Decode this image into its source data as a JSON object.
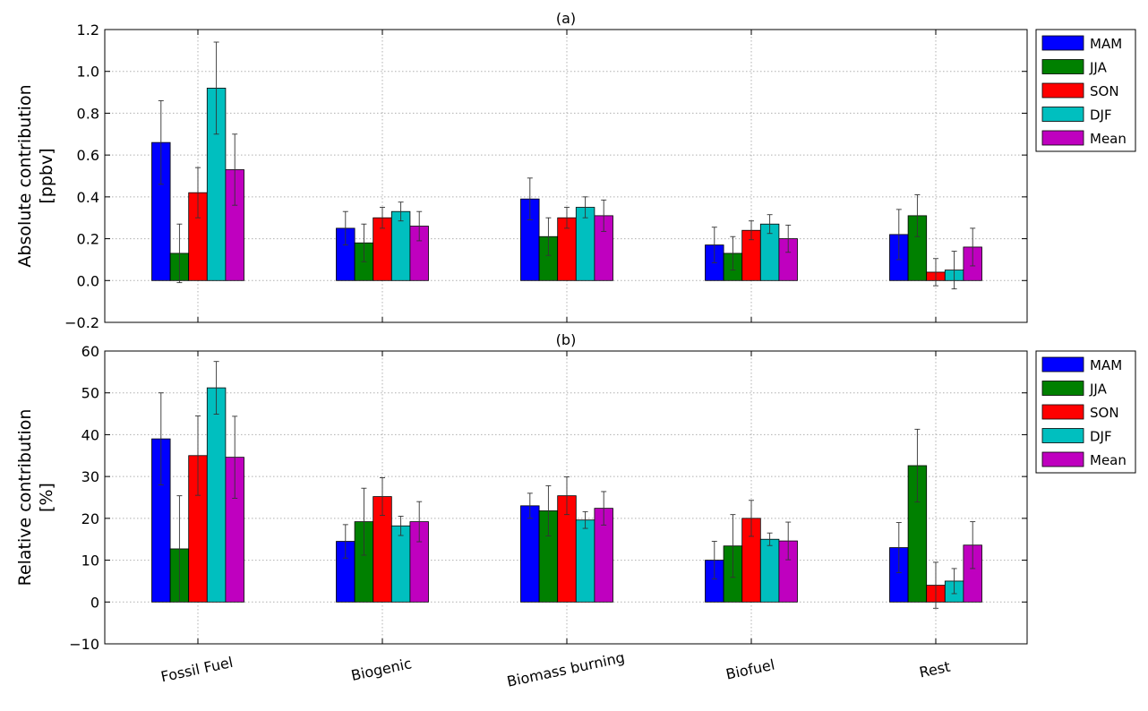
{
  "chart_data": [
    {
      "type": "bar",
      "title": "(a)",
      "ylabel_lines": [
        "Absolute contribution",
        "[ppbv]"
      ],
      "ylim": [
        -0.2,
        1.2
      ],
      "yticks": [
        -0.2,
        0.0,
        0.2,
        0.4,
        0.6,
        0.8,
        1.0,
        1.2
      ],
      "ytick_labels": [
        "−0.2",
        "0.0",
        "0.2",
        "0.4",
        "0.6",
        "0.8",
        "1.0",
        "1.2"
      ],
      "grid": true,
      "legend_position": "outside-right",
      "categories": [
        "Fossil Fuel",
        "Biogenic",
        "Biomass burning",
        "Biofuel",
        "Rest"
      ],
      "series": [
        {
          "name": "MAM",
          "color": "#0000ff",
          "values": [
            0.66,
            0.25,
            0.39,
            0.17,
            0.22
          ],
          "errors": [
            0.2,
            0.08,
            0.1,
            0.085,
            0.12
          ]
        },
        {
          "name": "JJA",
          "color": "#008000",
          "values": [
            0.13,
            0.18,
            0.21,
            0.13,
            0.31
          ],
          "errors": [
            0.14,
            0.09,
            0.09,
            0.08,
            0.1
          ]
        },
        {
          "name": "SON",
          "color": "#ff0000",
          "values": [
            0.42,
            0.3,
            0.3,
            0.24,
            0.04
          ],
          "errors": [
            0.12,
            0.05,
            0.05,
            0.045,
            0.065
          ]
        },
        {
          "name": "DJF",
          "color": "#00bfbf",
          "values": [
            0.92,
            0.33,
            0.35,
            0.27,
            0.05
          ],
          "errors": [
            0.22,
            0.045,
            0.05,
            0.045,
            0.09
          ]
        },
        {
          "name": "Mean",
          "color": "#bf00bf",
          "values": [
            0.53,
            0.26,
            0.31,
            0.2,
            0.16
          ],
          "errors": [
            0.17,
            0.07,
            0.075,
            0.065,
            0.09
          ]
        }
      ]
    },
    {
      "type": "bar",
      "title": "(b)",
      "ylabel_lines": [
        "Relative contribution",
        "[%]"
      ],
      "ylim": [
        -10,
        60
      ],
      "yticks": [
        -10,
        0,
        10,
        20,
        30,
        40,
        50,
        60
      ],
      "ytick_labels": [
        "−10",
        "0",
        "10",
        "20",
        "30",
        "40",
        "50",
        "60"
      ],
      "grid": true,
      "legend_position": "outside-right",
      "categories": [
        "Fossil Fuel",
        "Biogenic",
        "Biomass burning",
        "Biofuel",
        "Rest"
      ],
      "series": [
        {
          "name": "MAM",
          "color": "#0000ff",
          "values": [
            39,
            14.5,
            23,
            10,
            13
          ],
          "errors": [
            11,
            4,
            3,
            4.5,
            6
          ]
        },
        {
          "name": "JJA",
          "color": "#008000",
          "values": [
            12.7,
            19.2,
            21.8,
            13.4,
            32.6
          ],
          "errors": [
            12.7,
            8,
            6,
            7.5,
            8.7
          ]
        },
        {
          "name": "SON",
          "color": "#ff0000",
          "values": [
            35,
            25.2,
            25.4,
            20,
            4
          ],
          "errors": [
            9.5,
            4.5,
            4.5,
            4.3,
            5.5
          ]
        },
        {
          "name": "DJF",
          "color": "#00bfbf",
          "values": [
            51.2,
            18.2,
            19.6,
            15,
            5
          ],
          "errors": [
            6.3,
            2.3,
            2,
            1.5,
            3
          ]
        },
        {
          "name": "Mean",
          "color": "#bf00bf",
          "values": [
            34.6,
            19.2,
            22.4,
            14.6,
            13.6
          ],
          "errors": [
            9.8,
            4.8,
            4,
            4.5,
            5.6
          ]
        }
      ]
    }
  ]
}
